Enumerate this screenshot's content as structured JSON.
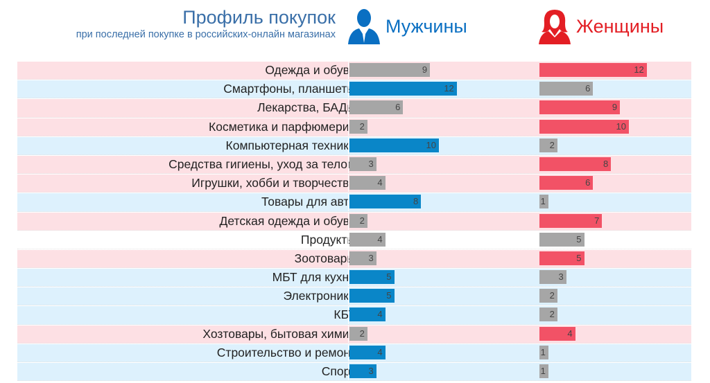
{
  "chart_data": {
    "type": "bar",
    "title": "Профиль покупок",
    "subtitle": "при последней покупке в российских-онлайн магазинах",
    "categories": [
      "Одежда и обувь",
      "Смартфоны, планшеты",
      "Лекарства, БАДы",
      "Косметика и парфюмерия",
      "Компьютерная техника",
      "Средства гигиены, уход за телом",
      "Игрушки, хобби и творчество",
      "Товары для авто",
      "Детская одежда и обувь",
      "Продукты",
      "Зоотовары",
      "МБТ для кухни",
      "Электроника",
      "КБТ",
      "Хозтовары, бытовая химия",
      "Строительство и ремонт",
      "Спорт"
    ],
    "series": [
      {
        "name": "Мужчины",
        "values": [
          9,
          12,
          6,
          2,
          10,
          3,
          4,
          8,
          2,
          4,
          3,
          5,
          5,
          4,
          2,
          4,
          3
        ]
      },
      {
        "name": "Женщины",
        "values": [
          12,
          6,
          9,
          10,
          2,
          8,
          6,
          1,
          7,
          5,
          5,
          3,
          2,
          2,
          4,
          1,
          1
        ]
      }
    ],
    "row_highlight": [
      "women",
      "men",
      "women",
      "women",
      "men",
      "women",
      "women",
      "men",
      "women",
      "none",
      "women",
      "men",
      "men",
      "men",
      "women",
      "men",
      "men"
    ],
    "colors": {
      "men": "#0a86c8",
      "women": "#f25266",
      "neutral": "#a6a6a6",
      "men_row": "#ddf1fd",
      "women_row": "#fde0e4",
      "title": "#3a6fa8",
      "men_header": "#0a6fc2",
      "women_header": "#e31e24"
    }
  }
}
